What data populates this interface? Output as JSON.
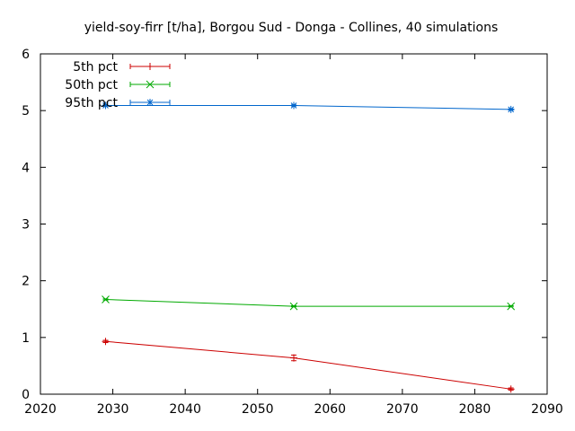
{
  "chart_data": {
    "type": "line",
    "title": "yield-soy-firr [t/ha], Borgou Sud - Donga - Collines, 40 simulations",
    "xlabel": "",
    "ylabel": "",
    "xlim": [
      2020,
      2090
    ],
    "ylim": [
      0,
      6
    ],
    "xticks": [
      2020,
      2030,
      2040,
      2050,
      2060,
      2070,
      2080,
      2090
    ],
    "yticks": [
      0,
      1,
      2,
      3,
      4,
      5,
      6
    ],
    "grid": false,
    "legend_position": "top-left",
    "x": [
      2029,
      2055,
      2085
    ],
    "series": [
      {
        "name": "5th pct",
        "color": "#cc0000",
        "marker": "plus",
        "values": [
          0.93,
          0.64,
          0.09
        ],
        "errors": [
          0.02,
          0.05,
          0.02
        ]
      },
      {
        "name": "50th pct",
        "color": "#00aa00",
        "marker": "cross",
        "values": [
          1.67,
          1.55,
          1.55
        ],
        "errors": [
          0.01,
          0.01,
          0.01
        ]
      },
      {
        "name": "95th pct",
        "color": "#0066cc",
        "marker": "star",
        "values": [
          5.09,
          5.09,
          5.02
        ],
        "errors": [
          0.01,
          0.01,
          0.01
        ]
      }
    ]
  }
}
